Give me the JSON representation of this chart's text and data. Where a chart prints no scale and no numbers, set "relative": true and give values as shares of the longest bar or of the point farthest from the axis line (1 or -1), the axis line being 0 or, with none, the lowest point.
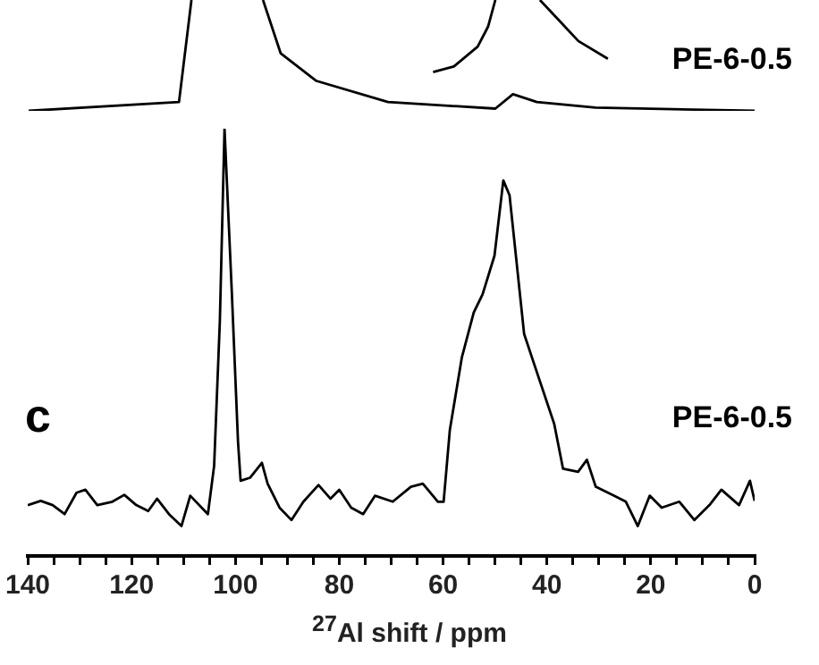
{
  "chart_data": [
    {
      "type": "line",
      "relative": true,
      "xlim": [
        140,
        0
      ],
      "tick_labels": false,
      "annotations": [
        "PE-6-0.5"
      ],
      "series": [
        {
          "color": "#000000",
          "x": [
            140,
            111,
            108.6,
            102,
            94.8,
            91.4,
            84.5,
            70.7,
            50,
            46.6,
            42,
            30.7,
            0
          ],
          "values": [
            0,
            0.08,
            1,
            null,
            1,
            0.52,
            0.27,
            0.08,
            0.02,
            0.15,
            0.08,
            0.03,
            0
          ]
        },
        {
          "color": "#000000",
          "x": [
            62,
            58,
            53.4,
            51.4,
            50,
            46,
            41.4,
            37.6,
            34,
            28.3
          ],
          "values": [
            0.35,
            0.4,
            0.58,
            0.76,
            1,
            null,
            1,
            0.81,
            0.63,
            0.47
          ]
        }
      ]
    },
    {
      "type": "line",
      "relative": true,
      "xlim": [
        140,
        0
      ],
      "xlabel": "$^{27}$Al shift / ppm",
      "annotations": [
        "c",
        "PE-6-0.5"
      ],
      "xticks": [
        140,
        {
          "value": 135,
          "label": null
        },
        {
          "value": 130,
          "label": null
        },
        {
          "value": 125,
          "label": null
        },
        120,
        {
          "value": 115,
          "label": null
        },
        {
          "value": 110,
          "label": null
        },
        {
          "value": 105,
          "label": null
        },
        100,
        {
          "value": 95,
          "label": null
        },
        {
          "value": 90,
          "label": null
        },
        {
          "value": 85,
          "label": null
        },
        80,
        {
          "value": 75,
          "label": null
        },
        {
          "value": 70,
          "label": null
        },
        {
          "value": 65,
          "label": null
        },
        60,
        {
          "value": 55,
          "label": null
        },
        {
          "value": 50,
          "label": null
        },
        {
          "value": 45,
          "label": null
        },
        40,
        {
          "value": 35,
          "label": null
        },
        {
          "value": 30,
          "label": null
        },
        {
          "value": 25,
          "label": null
        },
        20,
        {
          "value": 15,
          "label": null
        },
        {
          "value": 10,
          "label": null
        },
        {
          "value": 5,
          "label": null
        },
        0
      ],
      "series": [
        {
          "color": "#000000",
          "x": [
            140,
            137.5,
            135.2,
            132.9,
            130.6,
            128.9,
            126.6,
            123.7,
            121.4,
            119.1,
            116.8,
            115.1,
            112.8,
            110.4,
            108.7,
            105.3,
            104.1,
            103,
            102.1,
            100.7,
            99.5,
            99,
            97.2,
            94.9,
            93.8,
            91.5,
            89.2,
            86.9,
            84,
            81.7,
            80,
            77.7,
            75.4,
            73.1,
            69.7,
            66.2,
            63.9,
            61,
            59.9,
            58.7,
            56.4,
            54.1,
            52.4,
            50.1,
            48.4,
            47.2,
            44.4,
            42.1,
            38.6,
            36.9,
            34,
            32.3,
            30.6,
            27.1,
            24.8,
            22.5,
            20.2,
            17.9,
            14.5,
            11.6,
            8.7,
            6.4,
            3,
            0.9,
            0
          ],
          "values": [
            0.119,
            0.129,
            0.119,
            0.098,
            0.148,
            0.155,
            0.119,
            0.127,
            0.143,
            0.119,
            0.105,
            0.134,
            0.098,
            0.07,
            0.141,
            0.098,
            0.211,
            0.549,
            1,
            0.619,
            0.267,
            0.176,
            0.183,
            0.218,
            0.169,
            0.113,
            0.084,
            0.127,
            0.166,
            0.134,
            0.155,
            0.113,
            0.098,
            0.141,
            0.127,
            0.162,
            0.169,
            0.127,
            0.127,
            0.295,
            0.464,
            0.57,
            0.612,
            0.703,
            0.879,
            0.844,
            0.52,
            0.436,
            0.309,
            0.204,
            0.197,
            0.225,
            0.162,
            0.141,
            0.127,
            0.07,
            0.141,
            0.113,
            0.127,
            0.084,
            0.119,
            0.155,
            0.119,
            0.176,
            0.129
          ]
        }
      ]
    }
  ]
}
